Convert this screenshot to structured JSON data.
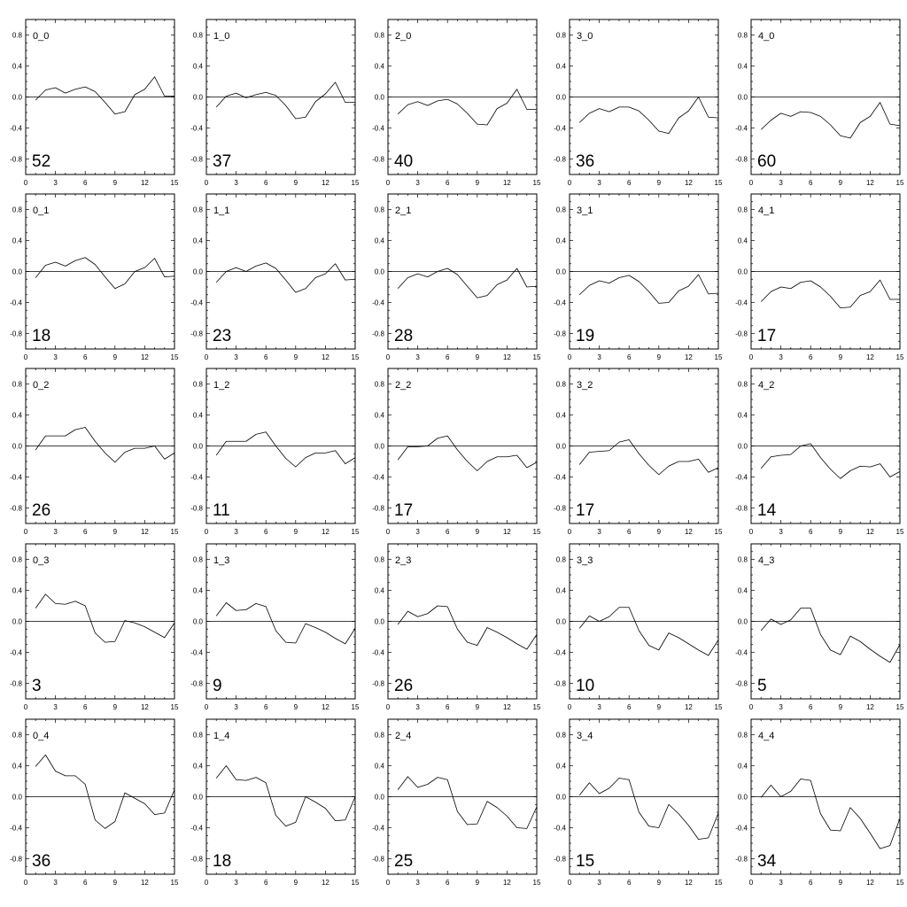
{
  "chart_data": {
    "type": "line",
    "layout": "5x5 small multiples",
    "xlim": [
      0,
      15
    ],
    "ylim": [
      -1.0,
      1.0
    ],
    "xticks": [
      0,
      3,
      6,
      9,
      12,
      15
    ],
    "yticks": [
      -0.8,
      -0.4,
      0.0,
      0.4,
      0.8
    ],
    "xticklabels": [
      "0",
      "3",
      "6",
      "9",
      "12",
      "15"
    ],
    "yticklabels": [
      "-0.8",
      "-0.4",
      "0.0",
      "0.4",
      "0.8"
    ],
    "x": [
      1,
      2,
      3,
      4,
      5,
      6,
      7,
      8,
      9,
      10,
      11,
      12,
      13,
      14,
      15
    ],
    "reference_line_y": 0.0,
    "panels": [
      {
        "label": "0_0",
        "count": "52",
        "values": [
          -0.04,
          0.09,
          0.12,
          0.05,
          0.1,
          0.13,
          0.07,
          -0.07,
          -0.22,
          -0.19,
          0.03,
          0.1,
          0.26,
          0.01,
          0.01
        ]
      },
      {
        "label": "1_0",
        "count": "37",
        "values": [
          -0.13,
          0.01,
          0.05,
          -0.01,
          0.03,
          0.06,
          0.02,
          -0.11,
          -0.28,
          -0.26,
          -0.06,
          0.04,
          0.19,
          -0.07,
          -0.07
        ]
      },
      {
        "label": "2_0",
        "count": "40",
        "values": [
          -0.22,
          -0.1,
          -0.06,
          -0.11,
          -0.05,
          -0.03,
          -0.09,
          -0.21,
          -0.35,
          -0.36,
          -0.15,
          -0.08,
          0.1,
          -0.16,
          -0.16
        ]
      },
      {
        "label": "3_0",
        "count": "36",
        "values": [
          -0.33,
          -0.21,
          -0.15,
          -0.19,
          -0.13,
          -0.13,
          -0.18,
          -0.3,
          -0.44,
          -0.47,
          -0.27,
          -0.18,
          0.0,
          -0.26,
          -0.27
        ]
      },
      {
        "label": "4_0",
        "count": "60",
        "values": [
          -0.42,
          -0.3,
          -0.21,
          -0.25,
          -0.19,
          -0.2,
          -0.25,
          -0.36,
          -0.5,
          -0.53,
          -0.33,
          -0.25,
          -0.07,
          -0.35,
          -0.37
        ]
      },
      {
        "label": "0_1",
        "count": "18",
        "values": [
          -0.08,
          0.08,
          0.12,
          0.07,
          0.14,
          0.18,
          0.09,
          -0.07,
          -0.22,
          -0.16,
          0.0,
          0.05,
          0.17,
          -0.07,
          -0.06
        ]
      },
      {
        "label": "1_1",
        "count": "23",
        "values": [
          -0.14,
          0.0,
          0.05,
          0.0,
          0.07,
          0.11,
          0.04,
          -0.11,
          -0.27,
          -0.22,
          -0.08,
          -0.03,
          0.1,
          -0.11,
          -0.1
        ]
      },
      {
        "label": "2_1",
        "count": "28",
        "values": [
          -0.22,
          -0.08,
          -0.03,
          -0.07,
          0.0,
          0.04,
          -0.04,
          -0.19,
          -0.34,
          -0.31,
          -0.17,
          -0.11,
          0.04,
          -0.2,
          -0.19
        ]
      },
      {
        "label": "3_1",
        "count": "19",
        "values": [
          -0.3,
          -0.18,
          -0.12,
          -0.15,
          -0.08,
          -0.05,
          -0.13,
          -0.26,
          -0.41,
          -0.4,
          -0.25,
          -0.19,
          -0.04,
          -0.29,
          -0.28
        ]
      },
      {
        "label": "4_1",
        "count": "17",
        "values": [
          -0.39,
          -0.26,
          -0.2,
          -0.22,
          -0.14,
          -0.12,
          -0.2,
          -0.32,
          -0.47,
          -0.46,
          -0.31,
          -0.26,
          -0.11,
          -0.36,
          -0.36
        ]
      },
      {
        "label": "0_2",
        "count": "26",
        "values": [
          -0.05,
          0.13,
          0.13,
          0.13,
          0.21,
          0.24,
          0.06,
          -0.09,
          -0.21,
          -0.08,
          -0.03,
          -0.03,
          0.0,
          -0.17,
          -0.09
        ]
      },
      {
        "label": "1_2",
        "count": "11",
        "values": [
          -0.12,
          0.06,
          0.06,
          0.06,
          0.15,
          0.18,
          0.0,
          -0.16,
          -0.27,
          -0.15,
          -0.09,
          -0.09,
          -0.06,
          -0.23,
          -0.15
        ]
      },
      {
        "label": "2_2",
        "count": "17",
        "values": [
          -0.18,
          -0.01,
          -0.01,
          0.0,
          0.1,
          0.13,
          -0.05,
          -0.2,
          -0.32,
          -0.2,
          -0.14,
          -0.14,
          -0.12,
          -0.28,
          -0.21
        ]
      },
      {
        "label": "3_2",
        "count": "17",
        "values": [
          -0.24,
          -0.08,
          -0.07,
          -0.06,
          0.05,
          0.08,
          -0.1,
          -0.25,
          -0.37,
          -0.26,
          -0.2,
          -0.2,
          -0.17,
          -0.34,
          -0.28
        ]
      },
      {
        "label": "4_2",
        "count": "14",
        "values": [
          -0.29,
          -0.14,
          -0.12,
          -0.11,
          0.0,
          0.03,
          -0.15,
          -0.3,
          -0.42,
          -0.32,
          -0.26,
          -0.27,
          -0.23,
          -0.4,
          -0.33
        ]
      },
      {
        "label": "0_3",
        "count": "3",
        "values": [
          0.17,
          0.35,
          0.23,
          0.22,
          0.26,
          0.2,
          -0.15,
          -0.27,
          -0.26,
          0.01,
          -0.02,
          -0.07,
          -0.14,
          -0.21,
          -0.02
        ]
      },
      {
        "label": "1_3",
        "count": "9",
        "values": [
          0.07,
          0.24,
          0.14,
          0.15,
          0.23,
          0.19,
          -0.12,
          -0.27,
          -0.28,
          -0.03,
          -0.08,
          -0.14,
          -0.22,
          -0.29,
          -0.09
        ]
      },
      {
        "label": "2_3",
        "count": "26",
        "values": [
          -0.04,
          0.13,
          0.06,
          0.1,
          0.2,
          0.19,
          -0.1,
          -0.27,
          -0.31,
          -0.08,
          -0.14,
          -0.21,
          -0.29,
          -0.36,
          -0.17
        ]
      },
      {
        "label": "3_3",
        "count": "10",
        "values": [
          -0.09,
          0.07,
          0.0,
          0.06,
          0.18,
          0.18,
          -0.12,
          -0.31,
          -0.37,
          -0.15,
          -0.21,
          -0.29,
          -0.37,
          -0.44,
          -0.24
        ]
      },
      {
        "label": "4_3",
        "count": "5",
        "values": [
          -0.12,
          0.03,
          -0.04,
          0.02,
          0.17,
          0.17,
          -0.17,
          -0.37,
          -0.43,
          -0.19,
          -0.26,
          -0.36,
          -0.45,
          -0.53,
          -0.3
        ]
      },
      {
        "label": "0_4",
        "count": "36",
        "values": [
          0.39,
          0.54,
          0.33,
          0.27,
          0.27,
          0.16,
          -0.3,
          -0.41,
          -0.32,
          0.05,
          -0.02,
          -0.09,
          -0.23,
          -0.21,
          0.09
        ]
      },
      {
        "label": "1_4",
        "count": "18",
        "values": [
          0.24,
          0.4,
          0.22,
          0.21,
          0.25,
          0.18,
          -0.24,
          -0.38,
          -0.33,
          0.0,
          -0.07,
          -0.15,
          -0.31,
          -0.3,
          0.0
        ]
      },
      {
        "label": "2_4",
        "count": "25",
        "values": [
          0.09,
          0.26,
          0.12,
          0.16,
          0.25,
          0.22,
          -0.19,
          -0.36,
          -0.35,
          -0.06,
          -0.14,
          -0.25,
          -0.4,
          -0.41,
          -0.13
        ]
      },
      {
        "label": "3_4",
        "count": "15",
        "values": [
          0.02,
          0.18,
          0.04,
          0.11,
          0.24,
          0.22,
          -0.2,
          -0.38,
          -0.4,
          -0.1,
          -0.22,
          -0.37,
          -0.55,
          -0.53,
          -0.21
        ]
      },
      {
        "label": "4_4",
        "count": "34",
        "values": [
          -0.01,
          0.15,
          0.0,
          0.07,
          0.23,
          0.21,
          -0.22,
          -0.43,
          -0.44,
          -0.14,
          -0.28,
          -0.47,
          -0.67,
          -0.63,
          -0.28
        ]
      }
    ]
  }
}
